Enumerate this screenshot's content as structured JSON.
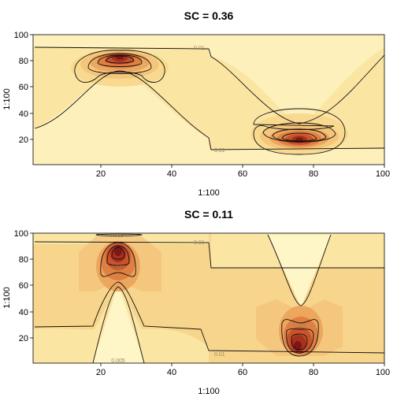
{
  "chart_data": [
    {
      "type": "heatmap",
      "subtype": "filled-contour",
      "title": "SC = 0.36",
      "xlabel": "1:100",
      "ylabel": "1:100",
      "xlim": [
        1,
        100
      ],
      "ylim": [
        1,
        100
      ],
      "xticks": [
        20,
        40,
        60,
        80,
        100
      ],
      "yticks": [
        20,
        40,
        60,
        80,
        100
      ],
      "contour_labels": [
        "0.01",
        "0.01"
      ],
      "palette": [
        "#fff6c8",
        "#fce9a8",
        "#f8d690",
        "#f3c178",
        "#eba05a",
        "#dd7a3e",
        "#c8522b",
        "#a8301f",
        "#7c1715"
      ],
      "peaks": [
        {
          "x": 25,
          "y": 82
        },
        {
          "x": 76,
          "y": 20
        }
      ]
    },
    {
      "type": "heatmap",
      "subtype": "filled-contour",
      "title": "SC = 0.11",
      "xlabel": "1:100",
      "ylabel": "1:100",
      "xlim": [
        1,
        100
      ],
      "ylim": [
        1,
        100
      ],
      "xticks": [
        20,
        40,
        60,
        80,
        100
      ],
      "yticks": [
        20,
        40,
        60,
        80,
        100
      ],
      "contour_labels": [
        "0.005",
        "0.01",
        "0.025",
        "0.005",
        "0.025",
        "0.01"
      ],
      "palette": [
        "#fff6c8",
        "#fce9a8",
        "#f8d690",
        "#f3c178",
        "#eba05a",
        "#dd7a3e",
        "#c8522b",
        "#a8301f",
        "#7c1715"
      ],
      "peaks": [
        {
          "x": 25,
          "y": 84
        },
        {
          "x": 76,
          "y": 16
        }
      ]
    }
  ]
}
